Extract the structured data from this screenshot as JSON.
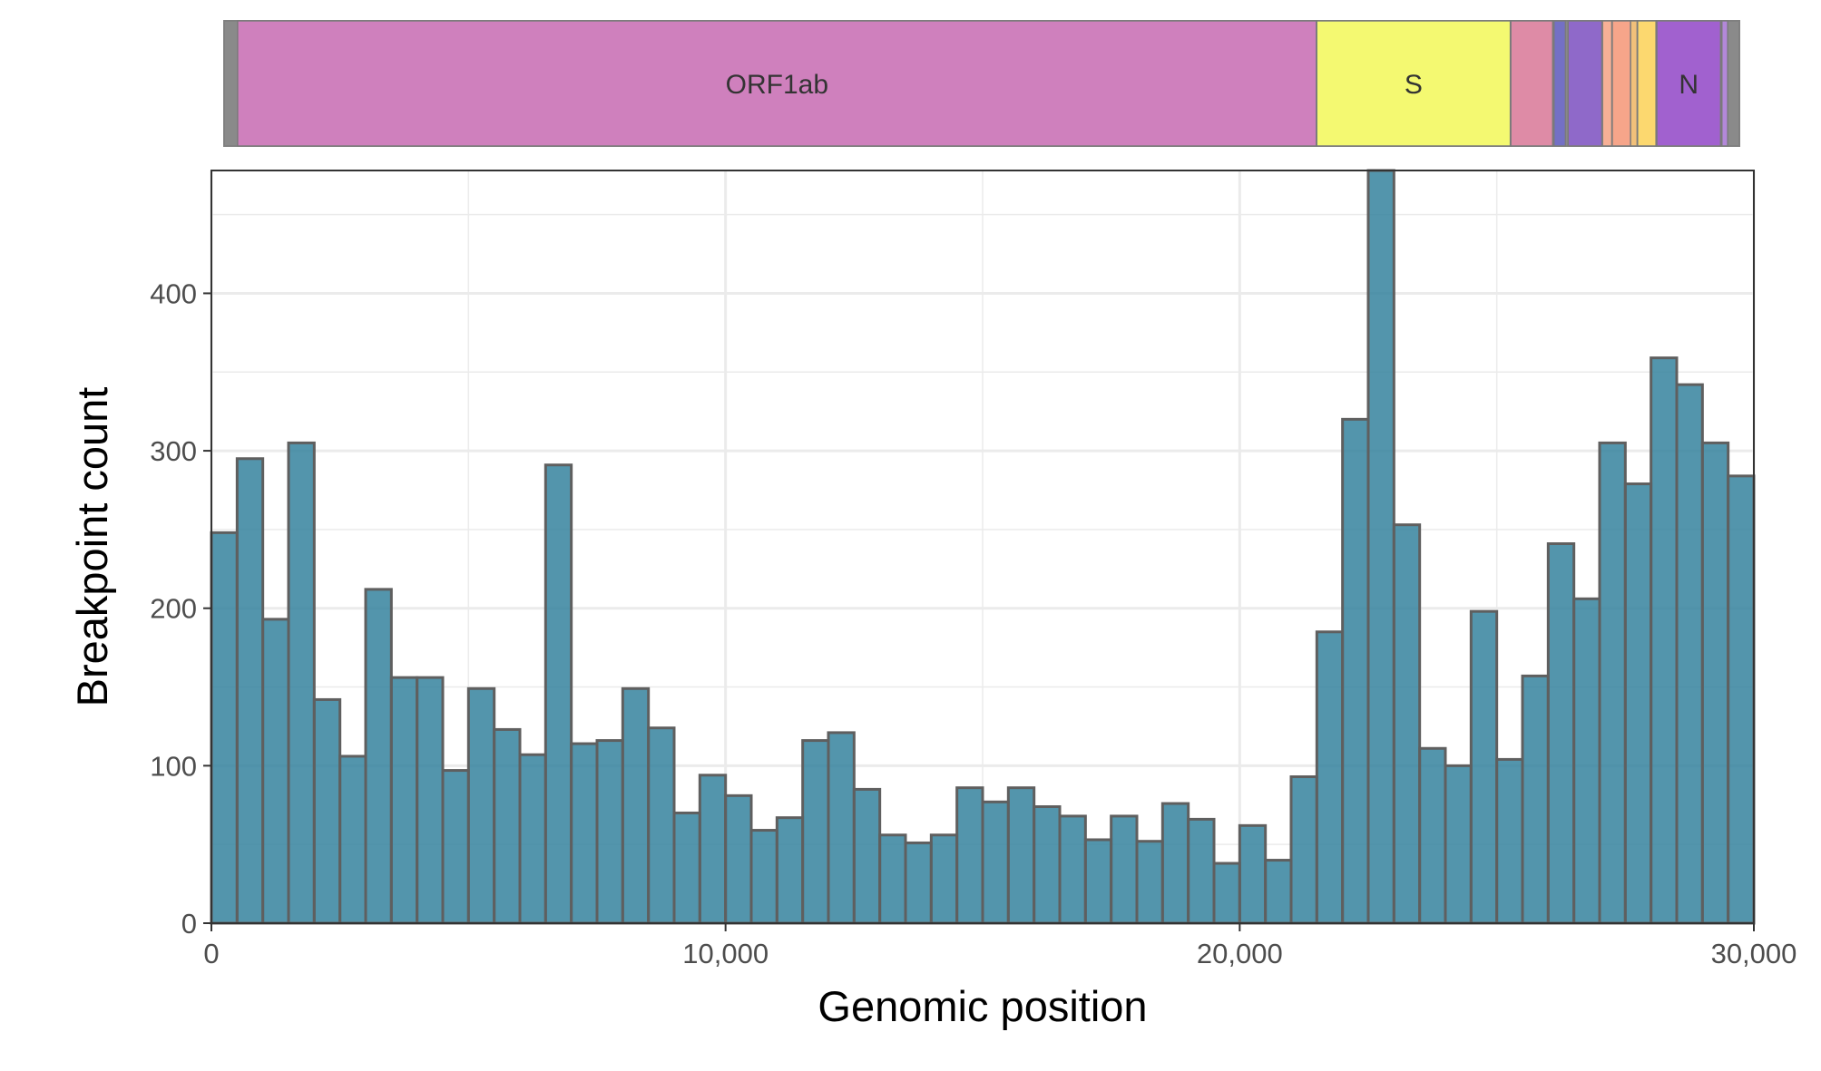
{
  "chart_data": {
    "type": "bar",
    "subtype": "histogram",
    "title": "",
    "xlabel": "Genomic position",
    "ylabel": "Breakpoint count",
    "xlim": [
      0,
      30000
    ],
    "ylim": [
      0,
      478
    ],
    "x_ticks": [
      0,
      10000,
      20000,
      30000
    ],
    "x_tick_labels": [
      "0",
      "10,000",
      "20,000",
      "30,000"
    ],
    "y_ticks": [
      0,
      100,
      200,
      300,
      400
    ],
    "y_tick_labels": [
      "0",
      "100",
      "200",
      "300",
      "400"
    ],
    "grid": true,
    "legend": "none",
    "bin_width": 500,
    "bin_starts": [
      0,
      500,
      1000,
      1500,
      2000,
      2500,
      3000,
      3500,
      4000,
      4500,
      5000,
      5500,
      6000,
      6500,
      7000,
      7500,
      8000,
      8500,
      9000,
      9500,
      10000,
      10500,
      11000,
      11500,
      12000,
      12500,
      13000,
      13500,
      14000,
      14500,
      15000,
      15500,
      16000,
      16500,
      17000,
      17500,
      18000,
      18500,
      19000,
      19500,
      20000,
      20500,
      21000,
      21500,
      22000,
      22500,
      23000,
      23500,
      24000,
      24500,
      25000,
      25500,
      26000,
      26500,
      27000,
      27500,
      28000,
      28500,
      29000,
      29500
    ],
    "values": [
      248,
      295,
      193,
      305,
      142,
      106,
      212,
      156,
      156,
      97,
      149,
      123,
      107,
      291,
      114,
      116,
      149,
      124,
      70,
      94,
      81,
      59,
      67,
      116,
      121,
      85,
      56,
      51,
      56,
      86,
      77,
      86,
      74,
      68,
      53,
      68,
      52,
      76,
      66,
      38,
      62,
      40,
      93,
      185,
      320,
      478,
      253,
      111,
      100,
      198,
      104,
      157,
      241,
      206,
      305,
      279,
      359,
      342,
      305,
      284
    ],
    "bar_fill": "#35829d",
    "bar_outline": "#5f5f5f",
    "gene_track": [
      {
        "name": "ORF1ab",
        "start": 266,
        "end": 21555,
        "color": "#cf80bd"
      },
      {
        "name": "S",
        "start": 21563,
        "end": 25384,
        "color": "#f4f971"
      },
      {
        "name": "",
        "start": 25393,
        "end": 26220,
        "color": "#de8ba6"
      },
      {
        "name": "",
        "start": 26245,
        "end": 26472,
        "color": "#7470c5"
      },
      {
        "name": "",
        "start": 26523,
        "end": 27191,
        "color": "#8f69c9"
      },
      {
        "name": "",
        "start": 27202,
        "end": 27387,
        "color": "#f7b096"
      },
      {
        "name": "",
        "start": 27394,
        "end": 27759,
        "color": "#f6a58a"
      },
      {
        "name": "",
        "start": 27756,
        "end": 27887,
        "color": "#f1c07a"
      },
      {
        "name": "",
        "start": 27894,
        "end": 28259,
        "color": "#fcd86f"
      },
      {
        "name": "N",
        "start": 28274,
        "end": 29533,
        "color": "#a161cf"
      },
      {
        "name": "",
        "start": 29558,
        "end": 29674,
        "color": "#b388d9"
      }
    ]
  }
}
